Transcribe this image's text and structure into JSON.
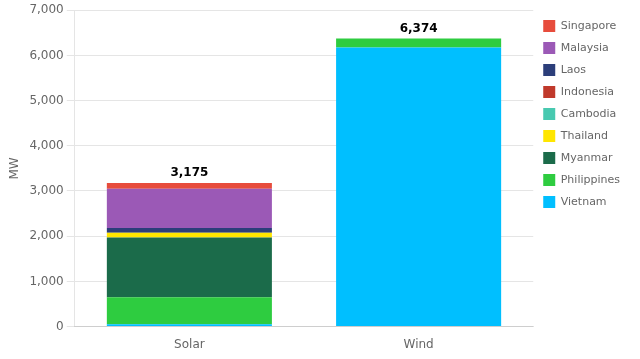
{
  "chart_data": {
    "type": "bar",
    "stacked": true,
    "ylabel": "MW",
    "categories": [
      "Solar",
      "Wind"
    ],
    "series": [
      {
        "name": "Vietnam",
        "color": "#00BFFF",
        "values": [
          50,
          6174
        ]
      },
      {
        "name": "Philippines",
        "color": "#2ECC40",
        "values": [
          600,
          200
        ]
      },
      {
        "name": "Myanmar",
        "color": "#1B6B4A",
        "values": [
          1320,
          0
        ]
      },
      {
        "name": "Thailand",
        "color": "#FFE600",
        "values": [
          105,
          0
        ]
      },
      {
        "name": "Cambodia",
        "color": "#48C9B0",
        "values": [
          null,
          null
        ]
      },
      {
        "name": "Indonesia",
        "color": "#C0392B",
        "values": [
          null,
          null
        ]
      },
      {
        "name": "Laos",
        "color": "#2C3E7A",
        "values": [
          105,
          0
        ]
      },
      {
        "name": "Malaysia",
        "color": "#9B59B6",
        "values": [
          870,
          0
        ]
      },
      {
        "name": "Singapore",
        "color": "#E74C3C",
        "values": [
          125,
          0
        ]
      }
    ],
    "annotations": [
      {
        "category": "Solar",
        "value": 3175,
        "label": "3,175"
      },
      {
        "category": "Wind",
        "value": 6374,
        "label": "6,374"
      }
    ],
    "ylim": [
      0,
      7000
    ],
    "yticks": [
      0,
      {
        "value": 1000,
        "label": "1,000"
      },
      {
        "value": 2000,
        "label": "2,000"
      },
      {
        "value": 3000,
        "label": "3,000"
      },
      {
        "value": 4000,
        "label": "4,000"
      },
      {
        "value": 5000,
        "label": "5,000"
      },
      {
        "value": 6000,
        "label": "6,000"
      },
      {
        "value": 7000,
        "label": "7,000"
      }
    ],
    "grid": true,
    "legend": "right"
  }
}
